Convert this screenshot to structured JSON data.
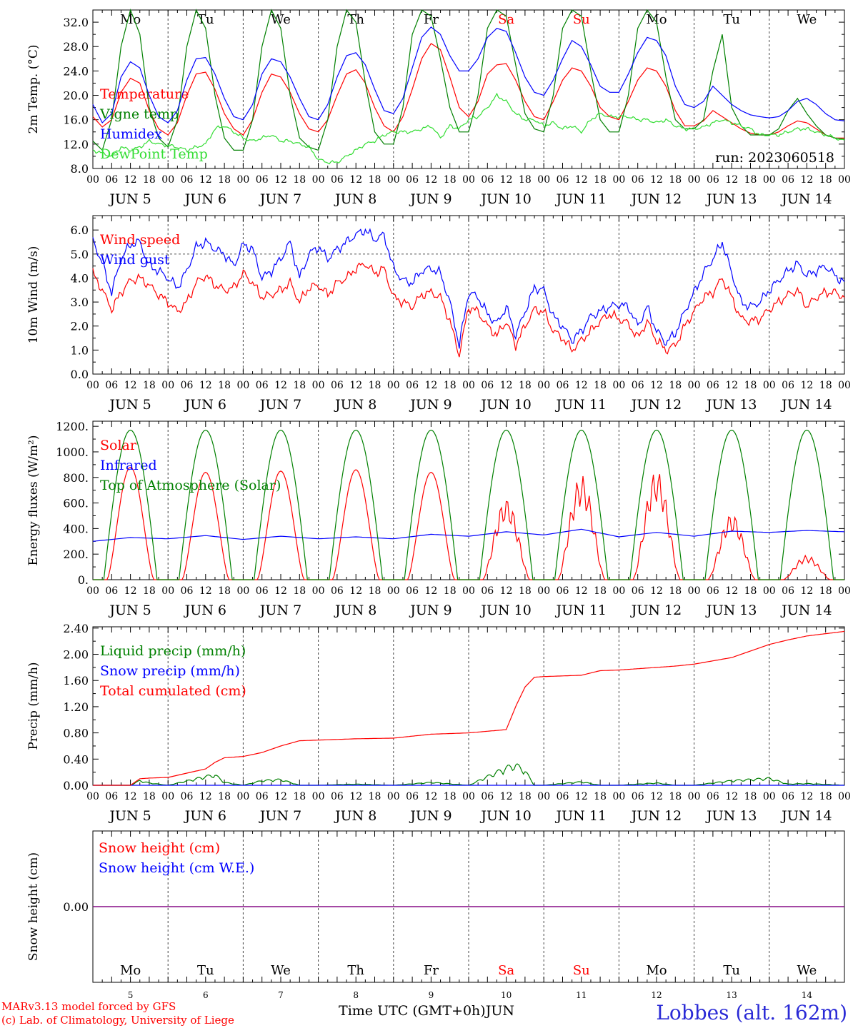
{
  "footer": {
    "model_line": "MARv3.13 model forced by GFS",
    "credit_line": "(c) Lab. of Climatology, University of Liege",
    "time_axis_label": "Time UTC (GMT+0h)",
    "month_label": "JUN",
    "station": "Lobbes (alt. 162m)"
  },
  "days": [
    {
      "weekday": "Mo",
      "date": "JUN  5",
      "day": "5",
      "weekend": false
    },
    {
      "weekday": "Tu",
      "date": "JUN  6",
      "day": "6",
      "weekend": false
    },
    {
      "weekday": "We",
      "date": "JUN  7",
      "day": "7",
      "weekend": false
    },
    {
      "weekday": "Th",
      "date": "JUN  8",
      "day": "8",
      "weekend": false
    },
    {
      "weekday": "Fr",
      "date": "JUN  9",
      "day": "9",
      "weekend": false
    },
    {
      "weekday": "Sa",
      "date": "JUN 10",
      "day": "10",
      "weekend": true
    },
    {
      "weekday": "Su",
      "date": "JUN 11",
      "day": "11",
      "weekend": true
    },
    {
      "weekday": "Mo",
      "date": "JUN 12",
      "day": "12",
      "weekend": false
    },
    {
      "weekday": "Tu",
      "date": "JUN 13",
      "day": "13",
      "weekend": false
    },
    {
      "weekday": "We",
      "date": "JUN 14",
      "day": "14",
      "weekend": false
    }
  ],
  "hour_ticks": [
    "00",
    "06",
    "12",
    "18"
  ],
  "colors": {
    "red": "#ff0000",
    "green": "#008000",
    "blue": "#0000ff",
    "lightgreen": "#33dd33",
    "weekend": "#ff0000",
    "purple": "#800080"
  },
  "chart_data": [
    {
      "type": "line",
      "ylabel": "2m Temp. (°C)",
      "ylim": [
        8.0,
        34.0
      ],
      "yticks": [
        8.0,
        12.0,
        16.0,
        20.0,
        24.0,
        28.0,
        32.0
      ],
      "annotation": "run: 2023060518",
      "show_weekdays": true,
      "x_unit": "hours since JUN 5 00 UTC",
      "x": [
        0,
        3,
        6,
        9,
        12,
        15,
        18,
        21,
        24,
        27,
        30,
        33,
        36,
        39,
        42,
        45,
        48,
        51,
        54,
        57,
        60,
        63,
        66,
        69,
        72,
        75,
        78,
        81,
        84,
        87,
        90,
        93,
        96,
        99,
        102,
        105,
        108,
        111,
        114,
        117,
        120,
        123,
        126,
        129,
        132,
        135,
        138,
        141,
        144,
        147,
        150,
        153,
        156,
        159,
        162,
        165,
        168,
        171,
        174,
        177,
        180,
        183,
        186,
        189,
        192,
        195,
        198,
        201,
        204,
        207,
        210,
        213,
        216,
        219,
        222,
        225,
        228,
        231,
        234,
        237,
        240
      ],
      "series": [
        {
          "name": "Temperature",
          "color": "#ff0000",
          "values": [
            16.5,
            14.8,
            16.0,
            20.5,
            22.8,
            22.0,
            17.5,
            14.5,
            13.5,
            15.5,
            20.0,
            23.5,
            23.8,
            21.0,
            17.0,
            14.5,
            13.5,
            16.0,
            20.5,
            23.5,
            23.0,
            20.5,
            17.0,
            14.5,
            14.0,
            16.0,
            20.0,
            23.5,
            24.2,
            22.0,
            18.0,
            15.0,
            14.0,
            16.5,
            21.0,
            26.0,
            28.5,
            27.5,
            23.0,
            18.0,
            16.5,
            19.0,
            23.5,
            25.0,
            25.2,
            22.5,
            19.0,
            16.5,
            16.0,
            19.0,
            22.5,
            24.5,
            24.0,
            21.5,
            18.0,
            16.5,
            16.0,
            19.0,
            22.5,
            24.5,
            24.0,
            21.5,
            17.5,
            15.0,
            15.0,
            15.8,
            17.5,
            16.5,
            15.5,
            14.5,
            13.8,
            13.5,
            13.5,
            14.0,
            15.0,
            15.8,
            15.5,
            14.5,
            13.5,
            13.0,
            13.0
          ]
        },
        {
          "name": "Vigne temp",
          "color": "#008000",
          "values": [
            12.5,
            11.0,
            16.0,
            28.0,
            34.0,
            30.0,
            18.0,
            13.0,
            11.5,
            16.0,
            28.0,
            34.0,
            31.0,
            20.0,
            13.0,
            11.0,
            11.0,
            16.0,
            28.0,
            34.0,
            31.0,
            20.0,
            13.0,
            11.5,
            11.0,
            16.0,
            28.0,
            34.0,
            32.0,
            22.0,
            14.0,
            12.0,
            12.0,
            18.0,
            30.0,
            34.0,
            33.0,
            26.0,
            18.0,
            14.0,
            14.0,
            20.0,
            31.0,
            34.0,
            33.0,
            25.0,
            17.0,
            14.5,
            14.0,
            20.0,
            31.0,
            34.0,
            33.0,
            24.0,
            16.0,
            14.0,
            14.0,
            20.0,
            31.0,
            34.0,
            32.0,
            23.0,
            16.0,
            14.5,
            14.5,
            16.0,
            24.0,
            30.0,
            18.0,
            15.0,
            13.5,
            13.5,
            13.5,
            14.5,
            17.5,
            19.5,
            17.0,
            15.0,
            13.5,
            13.0,
            12.8
          ]
        },
        {
          "name": "Humidex",
          "color": "#0000ff",
          "values": [
            18.5,
            15.5,
            17.0,
            23.0,
            25.5,
            24.5,
            20.0,
            16.5,
            15.5,
            17.5,
            22.5,
            26.0,
            26.2,
            23.5,
            19.5,
            16.5,
            16.0,
            18.5,
            23.5,
            26.0,
            25.5,
            23.0,
            19.5,
            16.5,
            16.0,
            18.5,
            23.0,
            26.5,
            27.0,
            25.0,
            21.0,
            17.5,
            17.0,
            19.5,
            24.5,
            29.5,
            31.2,
            30.0,
            26.5,
            24.0,
            24.0,
            26.0,
            29.5,
            31.0,
            30.5,
            27.0,
            23.0,
            20.5,
            20.0,
            22.5,
            26.0,
            29.0,
            28.0,
            25.0,
            21.5,
            20.5,
            20.5,
            23.5,
            27.0,
            29.5,
            29.0,
            26.5,
            21.5,
            18.5,
            18.0,
            19.0,
            21.5,
            20.0,
            18.5,
            17.5,
            16.8,
            16.5,
            16.3,
            16.5,
            17.5,
            19.0,
            19.5,
            18.5,
            17.0,
            16.0,
            15.8
          ]
        },
        {
          "name": "DewPoint Temp",
          "color": "#33dd33",
          "values": [
            11.0,
            10.5,
            10.0,
            11.5,
            11.0,
            11.5,
            12.5,
            12.0,
            11.8,
            11.5,
            11.0,
            11.5,
            12.0,
            14.5,
            15.0,
            14.0,
            13.0,
            12.5,
            13.0,
            13.5,
            12.5,
            12.5,
            12.0,
            11.5,
            9.5,
            9.0,
            9.0,
            10.0,
            11.0,
            12.0,
            12.5,
            13.5,
            14.0,
            14.0,
            14.0,
            14.5,
            15.0,
            13.0,
            15.0,
            14.5,
            16.0,
            16.5,
            18.0,
            20.0,
            19.0,
            17.0,
            16.0,
            16.0,
            15.0,
            15.5,
            14.5,
            15.0,
            14.0,
            16.0,
            17.0,
            16.5,
            16.5,
            16.5,
            16.0,
            16.0,
            15.5,
            16.0,
            15.0,
            14.5,
            14.5,
            14.8,
            15.5,
            16.0,
            15.5,
            15.0,
            14.5,
            13.5,
            13.5,
            13.5,
            14.0,
            14.5,
            14.5,
            14.0,
            13.5,
            13.0,
            12.5
          ]
        }
      ]
    },
    {
      "type": "line",
      "ylabel": "10m Wind (m/s)",
      "ylim": [
        0.0,
        6.6
      ],
      "yticks": [
        0.0,
        1.0,
        2.0,
        3.0,
        4.0,
        5.0,
        6.0
      ],
      "ref_line": 5.0,
      "x_unit": "hours since JUN 5 00 UTC",
      "x": [
        0,
        3,
        6,
        9,
        12,
        15,
        18,
        21,
        24,
        27,
        30,
        33,
        36,
        39,
        42,
        45,
        48,
        51,
        54,
        57,
        60,
        63,
        66,
        69,
        72,
        75,
        78,
        81,
        84,
        87,
        90,
        93,
        96,
        99,
        102,
        105,
        108,
        111,
        114,
        117,
        120,
        123,
        126,
        129,
        132,
        135,
        138,
        141,
        144,
        147,
        150,
        153,
        156,
        159,
        162,
        165,
        168,
        171,
        174,
        177,
        180,
        183,
        186,
        189,
        192,
        195,
        198,
        201,
        204,
        207,
        210,
        213,
        216,
        219,
        222,
        225,
        228,
        231,
        234,
        237,
        240
      ],
      "series": [
        {
          "name": "Wind speed",
          "color": "#ff0000",
          "values": [
            4.2,
            3.5,
            2.7,
            3.4,
            3.9,
            4.0,
            3.7,
            3.3,
            3.0,
            2.6,
            3.0,
            3.8,
            4.1,
            3.7,
            3.5,
            3.6,
            4.2,
            3.8,
            3.2,
            3.3,
            3.5,
            3.8,
            3.0,
            3.6,
            3.7,
            3.3,
            3.8,
            4.0,
            4.4,
            4.6,
            4.2,
            4.4,
            3.2,
            3.0,
            2.8,
            3.3,
            3.4,
            3.2,
            2.2,
            0.8,
            2.8,
            2.6,
            2.0,
            1.6,
            2.2,
            1.2,
            2.0,
            2.7,
            2.6,
            1.8,
            1.5,
            1.0,
            1.4,
            1.8,
            2.2,
            2.5,
            2.3,
            2.1,
            1.5,
            2.2,
            1.4,
            1.0,
            1.2,
            2.0,
            2.6,
            3.2,
            3.4,
            4.0,
            3.2,
            2.3,
            2.2,
            2.3,
            2.7,
            3.0,
            3.3,
            3.5,
            2.8,
            3.2,
            3.4,
            3.4,
            3.2
          ]
        },
        {
          "name": "Wind gust",
          "color": "#0000ff",
          "values": [
            5.6,
            4.6,
            3.4,
            4.8,
            5.4,
            5.5,
            4.5,
            4.3,
            4.0,
            3.6,
            4.3,
            5.3,
            5.5,
            5.2,
            5.0,
            4.5,
            5.4,
            5.2,
            4.0,
            4.3,
            4.8,
            5.5,
            4.0,
            5.0,
            5.3,
            4.8,
            5.2,
            5.5,
            5.8,
            6.0,
            5.6,
            5.8,
            4.4,
            3.9,
            3.8,
            4.3,
            4.4,
            4.2,
            3.0,
            1.2,
            3.4,
            3.2,
            2.5,
            2.1,
            2.8,
            1.6,
            2.6,
            3.6,
            3.5,
            2.4,
            2.0,
            1.4,
            1.8,
            2.4,
            2.6,
            2.8,
            2.9,
            2.8,
            2.0,
            2.8,
            1.8,
            1.3,
            1.7,
            2.6,
            3.4,
            4.2,
            4.8,
            5.5,
            4.2,
            3.0,
            2.8,
            3.0,
            3.5,
            3.9,
            4.3,
            4.6,
            4.1,
            4.3,
            4.5,
            4.1,
            3.8
          ]
        }
      ]
    },
    {
      "type": "line",
      "ylabel": "Energy fluxes (W/m²)",
      "ylim": [
        0,
        1240
      ],
      "yticks": [
        0,
        200,
        400,
        600,
        800,
        1000,
        1200
      ],
      "ytick_labels": [
        "0.",
        "200.",
        "400.",
        "600.",
        "800.",
        "1000.",
        "1200."
      ],
      "x_unit": "hours since JUN 5 00 UTC",
      "diurnal": {
        "toa_peak": 1170,
        "toa_window_hours": [
          3.5,
          20.5
        ],
        "solar_window_hours": [
          4.5,
          19.5
        ],
        "solar_peaks": [
          880,
          840,
          850,
          860,
          840,
          640,
          820,
          860,
          520,
          190
        ]
      },
      "x": [
        0,
        12,
        24,
        36,
        48,
        60,
        72,
        84,
        96,
        108,
        120,
        132,
        144,
        156,
        168,
        180,
        192,
        204,
        216,
        228,
        240
      ],
      "series": [
        {
          "name": "Solar",
          "color": "#ff0000",
          "values": "diurnal"
        },
        {
          "name": "Infrared",
          "color": "#0000ff",
          "values": [
            300,
            330,
            320,
            345,
            315,
            340,
            320,
            335,
            320,
            355,
            340,
            375,
            350,
            395,
            335,
            370,
            340,
            380,
            370,
            385,
            375
          ]
        },
        {
          "name": "Top of Atmosphere (Solar)",
          "color": "#008000",
          "values": "diurnal"
        }
      ]
    },
    {
      "type": "line",
      "ylabel": "Precip (mm/h)",
      "ylim": [
        0.0,
        2.42
      ],
      "yticks": [
        0.0,
        0.4,
        0.8,
        1.2,
        1.6,
        2.0,
        2.4
      ],
      "ytick_labels": [
        "0.00",
        "0.40",
        "0.80",
        "1.20",
        "1.60",
        "2.00",
        "2.40"
      ],
      "x_unit": "hours since JUN 5 00 UTC",
      "x": [
        0,
        12,
        15,
        18,
        24,
        36,
        39,
        42,
        48,
        54,
        60,
        66,
        72,
        84,
        96,
        108,
        120,
        132,
        135,
        138,
        141,
        144,
        156,
        162,
        168,
        180,
        186,
        192,
        204,
        216,
        222,
        228,
        240
      ],
      "series": [
        {
          "name": "Liquid precip (mm/h)",
          "color": "#008000",
          "values": [
            0,
            0,
            0.08,
            0.04,
            0,
            0.15,
            0.18,
            0.05,
            0,
            0.08,
            0.1,
            0,
            0,
            0.02,
            0,
            0.05,
            0,
            0.3,
            0.35,
            0.25,
            0,
            0,
            0.06,
            0,
            0,
            0.04,
            0,
            0,
            0.08,
            0.12,
            0.02,
            0.03,
            0
          ]
        },
        {
          "name": "Snow precip (mm/h)",
          "color": "#0000ff",
          "values": [
            0,
            0,
            0,
            0,
            0,
            0,
            0,
            0,
            0,
            0,
            0,
            0,
            0,
            0,
            0,
            0,
            0,
            0,
            0,
            0,
            0,
            0,
            0,
            0,
            0,
            0,
            0,
            0,
            0,
            0,
            0,
            0,
            0
          ]
        },
        {
          "name": "Total cumulated (cm)",
          "color": "#ff0000",
          "values": [
            0,
            0,
            0.1,
            0.11,
            0.12,
            0.25,
            0.35,
            0.42,
            0.44,
            0.5,
            0.6,
            0.68,
            0.69,
            0.71,
            0.72,
            0.78,
            0.8,
            0.85,
            1.2,
            1.5,
            1.65,
            1.66,
            1.68,
            1.75,
            1.76,
            1.8,
            1.82,
            1.85,
            1.95,
            2.15,
            2.22,
            2.28,
            2.35
          ]
        }
      ]
    },
    {
      "type": "line",
      "ylabel": "Snow height (cm)",
      "ylim": [
        -1.0,
        1.0
      ],
      "yticks": [
        0.0
      ],
      "ytick_labels": [
        "0.00"
      ],
      "x_unit": "hours since JUN 5 00 UTC",
      "x": [
        0,
        240
      ],
      "series": [
        {
          "name": "Snow height (cm)",
          "color": "#ff0000",
          "values": [
            0,
            0
          ]
        },
        {
          "name": "Snow height (cm W.E.)",
          "color": "#0000ff",
          "values": [
            0,
            0
          ]
        }
      ]
    }
  ]
}
